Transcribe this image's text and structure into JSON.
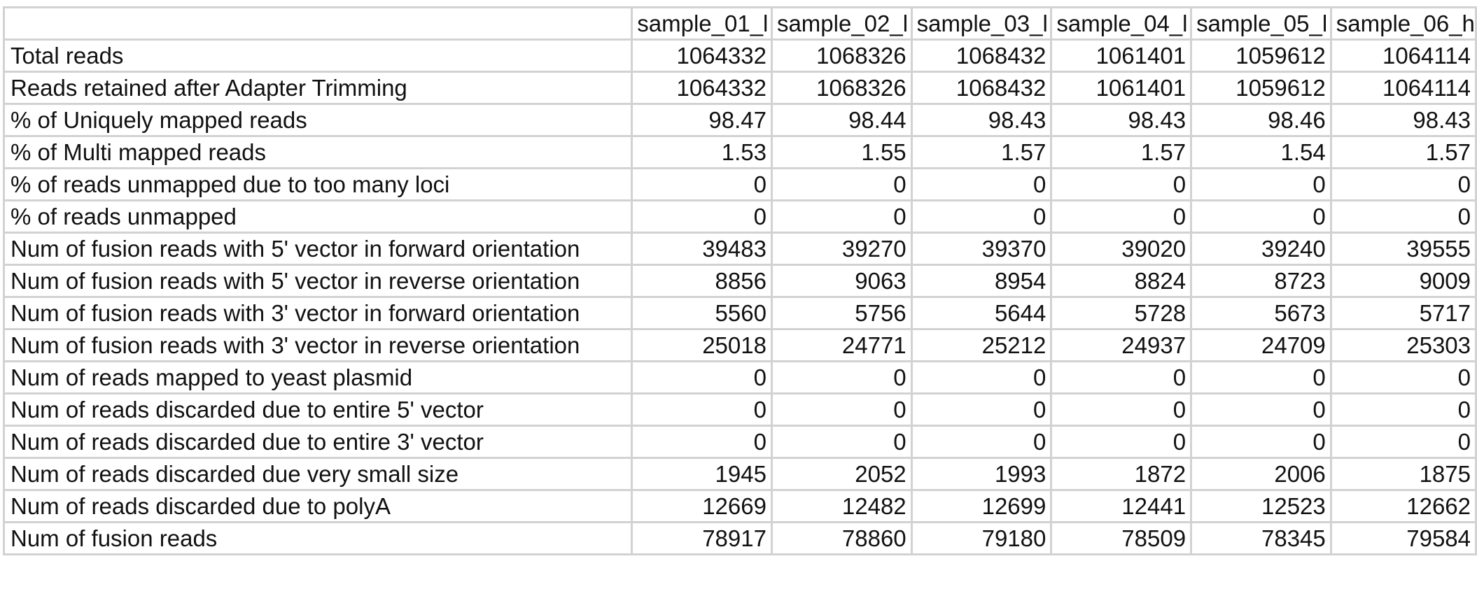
{
  "header": {
    "corner": "",
    "samples": [
      "sample_01_l",
      "sample_02_l",
      "sample_03_l",
      "sample_04_l",
      "sample_05_l",
      "sample_06_h"
    ]
  },
  "rows": [
    {
      "label": "Total reads",
      "values": [
        "1064332",
        "1068326",
        "1068432",
        "1061401",
        "1059612",
        "1064114"
      ]
    },
    {
      "label": "Reads retained after Adapter Trimming",
      "values": [
        "1064332",
        "1068326",
        "1068432",
        "1061401",
        "1059612",
        "1064114"
      ]
    },
    {
      "label": "% of Uniquely mapped reads",
      "values": [
        "98.47",
        "98.44",
        "98.43",
        "98.43",
        "98.46",
        "98.43"
      ]
    },
    {
      "label": "% of Multi mapped reads",
      "values": [
        "1.53",
        "1.55",
        "1.57",
        "1.57",
        "1.54",
        "1.57"
      ]
    },
    {
      "label": "% of reads unmapped due to too many loci",
      "values": [
        "0",
        "0",
        "0",
        "0",
        "0",
        "0"
      ]
    },
    {
      "label": "% of reads unmapped",
      "values": [
        "0",
        "0",
        "0",
        "0",
        "0",
        "0"
      ]
    },
    {
      "label": "Num of fusion reads with 5' vector in forward orientation",
      "values": [
        "39483",
        "39270",
        "39370",
        "39020",
        "39240",
        "39555"
      ]
    },
    {
      "label": "Num of fusion reads with 5' vector in reverse orientation",
      "values": [
        "8856",
        "9063",
        "8954",
        "8824",
        "8723",
        "9009"
      ]
    },
    {
      "label": "Num of fusion reads with 3' vector in forward orientation",
      "values": [
        "5560",
        "5756",
        "5644",
        "5728",
        "5673",
        "5717"
      ]
    },
    {
      "label": "Num of fusion reads with 3' vector in reverse orientation",
      "values": [
        "25018",
        "24771",
        "25212",
        "24937",
        "24709",
        "25303"
      ]
    },
    {
      "label": "Num of reads mapped to yeast plasmid",
      "values": [
        "0",
        "0",
        "0",
        "0",
        "0",
        "0"
      ]
    },
    {
      "label": "Num of reads discarded due to entire 5' vector",
      "values": [
        "0",
        "0",
        "0",
        "0",
        "0",
        "0"
      ]
    },
    {
      "label": "Num of reads discarded due to entire 3' vector",
      "values": [
        "0",
        "0",
        "0",
        "0",
        "0",
        "0"
      ]
    },
    {
      "label": "Num of reads discarded due very small size",
      "values": [
        "1945",
        "2052",
        "1993",
        "1872",
        "2006",
        "1875"
      ]
    },
    {
      "label": "Num of reads discarded due to polyA",
      "values": [
        "12669",
        "12482",
        "12699",
        "12441",
        "12523",
        "12662"
      ]
    },
    {
      "label": "Num of fusion reads",
      "values": [
        "78917",
        "78860",
        "79180",
        "78509",
        "78345",
        "79584"
      ]
    }
  ]
}
